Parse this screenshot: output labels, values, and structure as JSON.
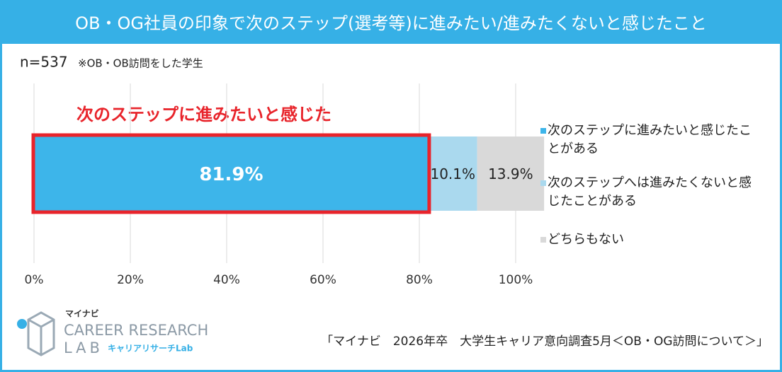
{
  "chart_data": {
    "type": "stacked-bar-horizontal",
    "title": "OB・OG社員の印象で次のステップ(選考等)に進みたい/進みたくないと感じたこと",
    "sample": "n=537",
    "note": "※OB・OB訪問をした学生",
    "annotation": "次のステップに進みたいと感じた",
    "series": [
      {
        "name": "次のステップに進みたいと感じたことがある",
        "color": "#3db5ea",
        "values": [
          81.9
        ],
        "value_labels": [
          "81.9%"
        ]
      },
      {
        "name": "次のステップへは進みたくないと感じたことがある",
        "color": "#aad9ee",
        "values": [
          10.1
        ],
        "value_labels": [
          "10.1%"
        ]
      },
      {
        "name": "どちらもない",
        "color": "#d9d9d9",
        "values": [
          13.9
        ],
        "value_labels": [
          "13.9%"
        ]
      }
    ],
    "xlim": [
      0,
      100
    ],
    "xticks": [
      {
        "value": 0,
        "label": "0%"
      },
      {
        "value": 20,
        "label": "20%"
      },
      {
        "value": 40,
        "label": "40%"
      },
      {
        "value": 60,
        "label": "60%"
      },
      {
        "value": 80,
        "label": "80%"
      },
      {
        "value": 100,
        "label": "100%"
      }
    ],
    "grid": true,
    "legend": "right"
  },
  "footer": {
    "brand": "マイナビ",
    "logo_line1": "CAREER RESEARCH",
    "logo_line2": "LAB",
    "logo_sub": "キャリアリサーチLab",
    "source": "「マイナビ　2026年卒　大学生キャリア意向調査5月＜OB・OG訪問について＞」"
  }
}
